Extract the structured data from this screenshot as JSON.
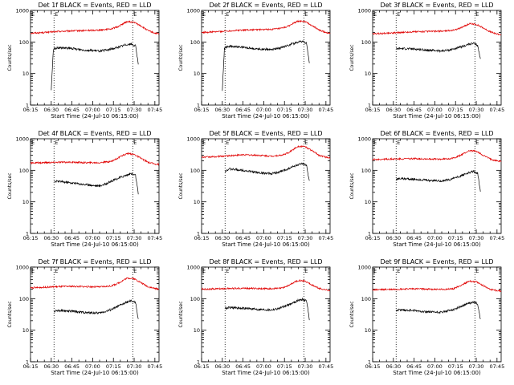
{
  "colors": {
    "events": "#000000",
    "lld": "#e00000"
  },
  "chart_data": [
    {
      "type": "line",
      "title": "Det 1f BLACK = Events, RED = LLD",
      "xlabel": "Start Time (24-Jul-10 06:15:00)",
      "ylabel": "Counts/sec",
      "x_ticks": [
        "06:15",
        "06:30",
        "06:45",
        "07:00",
        "07:15",
        "07:30",
        "07:45"
      ],
      "y_ticks": [
        "1",
        "10",
        "100",
        "1000"
      ],
      "yscale": "log",
      "ylim": [
        1,
        1000
      ],
      "xlim_minutes": [
        0,
        93
      ],
      "markers": [
        "E",
        "E"
      ],
      "marker_minutes": [
        17,
        74
      ],
      "series": [
        {
          "name": "LLD",
          "x_minutes": [
            0,
            10,
            20,
            30,
            40,
            50,
            58,
            63,
            67,
            70,
            75,
            80,
            85,
            90,
            93
          ],
          "y": [
            190,
            200,
            215,
            225,
            230,
            240,
            260,
            300,
            380,
            440,
            420,
            320,
            230,
            190,
            180
          ]
        },
        {
          "name": "Events",
          "x_minutes": [
            15,
            16.5,
            17,
            20,
            30,
            40,
            50,
            55,
            60,
            65,
            70,
            73,
            76,
            78
          ],
          "y": [
            3,
            55,
            62,
            65,
            62,
            55,
            52,
            55,
            62,
            72,
            85,
            85,
            75,
            20
          ]
        }
      ]
    },
    {
      "type": "line",
      "title": "Det 2f BLACK = Events, RED = LLD",
      "xlabel": "Start Time (24-Jul-10 06:15:00)",
      "ylabel": "Counts/sec",
      "x_ticks": [
        "06:15",
        "06:30",
        "06:45",
        "07:00",
        "07:15",
        "07:30",
        "07:45"
      ],
      "y_ticks": [
        "1",
        "10",
        "100",
        "1000"
      ],
      "yscale": "log",
      "ylim": [
        1,
        1000
      ],
      "xlim_minutes": [
        0,
        93
      ],
      "markers": [
        "E",
        "E"
      ],
      "marker_minutes": [
        17,
        74
      ],
      "series": [
        {
          "name": "LLD",
          "x_minutes": [
            0,
            10,
            20,
            30,
            40,
            50,
            58,
            63,
            67,
            70,
            75,
            80,
            85,
            90,
            93
          ],
          "y": [
            200,
            210,
            225,
            240,
            245,
            250,
            270,
            320,
            400,
            460,
            440,
            330,
            240,
            200,
            190
          ]
        },
        {
          "name": "Events",
          "x_minutes": [
            15,
            16.5,
            17,
            20,
            30,
            40,
            50,
            55,
            60,
            65,
            70,
            73,
            76,
            78
          ],
          "y": [
            3,
            60,
            68,
            72,
            68,
            60,
            58,
            62,
            72,
            85,
            100,
            105,
            90,
            20
          ]
        }
      ]
    },
    {
      "type": "line",
      "title": "Det 3f BLACK = Events, RED = LLD",
      "xlabel": "Start Time (24-Jul-10 06:15:00)",
      "ylabel": "Counts/sec",
      "x_ticks": [
        "06:15",
        "06:30",
        "06:45",
        "07:00",
        "07:15",
        "07:30",
        "07:45"
      ],
      "y_ticks": [
        "1",
        "10",
        "100",
        "1000"
      ],
      "yscale": "log",
      "ylim": [
        1,
        1000
      ],
      "xlim_minutes": [
        0,
        93
      ],
      "markers": [
        "E",
        "E"
      ],
      "marker_minutes": [
        17,
        74
      ],
      "series": [
        {
          "name": "LLD",
          "x_minutes": [
            0,
            10,
            20,
            30,
            40,
            50,
            58,
            63,
            67,
            70,
            75,
            80,
            85,
            90,
            93
          ],
          "y": [
            180,
            190,
            200,
            210,
            215,
            220,
            235,
            270,
            330,
            380,
            360,
            280,
            210,
            180,
            170
          ]
        },
        {
          "name": "Events",
          "x_minutes": [
            17,
            20,
            30,
            40,
            50,
            55,
            60,
            65,
            70,
            73,
            76,
            78
          ],
          "y": [
            60,
            62,
            60,
            55,
            52,
            55,
            62,
            72,
            85,
            90,
            78,
            28
          ]
        }
      ]
    },
    {
      "type": "line",
      "title": "Det 4f BLACK = Events, RED = LLD",
      "xlabel": "Start Time (24-Jul-10 06:15:00)",
      "ylabel": "Counts/sec",
      "x_ticks": [
        "06:15",
        "06:30",
        "06:45",
        "07:00",
        "07:15",
        "07:30",
        "07:45"
      ],
      "y_ticks": [
        "1",
        "10",
        "100",
        "1000"
      ],
      "yscale": "log",
      "ylim": [
        1,
        1000
      ],
      "xlim_minutes": [
        0,
        93
      ],
      "markers": [
        "E",
        "E"
      ],
      "marker_minutes": [
        17,
        74
      ],
      "series": [
        {
          "name": "LLD",
          "x_minutes": [
            0,
            10,
            20,
            30,
            40,
            50,
            58,
            63,
            67,
            70,
            75,
            80,
            85,
            90,
            93
          ],
          "y": [
            170,
            175,
            180,
            180,
            175,
            175,
            190,
            240,
            300,
            340,
            320,
            240,
            180,
            160,
            155
          ]
        },
        {
          "name": "Events",
          "x_minutes": [
            17,
            20,
            30,
            40,
            50,
            55,
            60,
            65,
            70,
            73,
            76,
            78
          ],
          "y": [
            45,
            45,
            40,
            35,
            32,
            38,
            48,
            60,
            72,
            78,
            70,
            18
          ]
        }
      ]
    },
    {
      "type": "line",
      "title": "Det 5f BLACK = Events, RED = LLD",
      "xlabel": "Start Time (24-Jul-10 06:15:00)",
      "ylabel": "Counts/sec",
      "x_ticks": [
        "06:15",
        "06:30",
        "06:45",
        "07:00",
        "07:15",
        "07:30",
        "07:45"
      ],
      "y_ticks": [
        "1",
        "10",
        "100",
        "1000"
      ],
      "yscale": "log",
      "ylim": [
        1,
        1000
      ],
      "xlim_minutes": [
        0,
        93
      ],
      "markers": [
        "E",
        "E"
      ],
      "marker_minutes": [
        17,
        74
      ],
      "series": [
        {
          "name": "LLD",
          "x_minutes": [
            0,
            10,
            20,
            30,
            40,
            50,
            58,
            63,
            67,
            70,
            75,
            80,
            85,
            90,
            93
          ],
          "y": [
            260,
            270,
            290,
            310,
            300,
            280,
            300,
            360,
            480,
            580,
            560,
            420,
            300,
            260,
            250
          ]
        },
        {
          "name": "Events",
          "x_minutes": [
            17,
            20,
            30,
            40,
            50,
            55,
            60,
            65,
            70,
            73,
            76,
            78
          ],
          "y": [
            95,
            110,
            100,
            85,
            78,
            85,
            100,
            125,
            150,
            160,
            140,
            45
          ]
        }
      ]
    },
    {
      "type": "line",
      "title": "Det 6f BLACK = Events, RED = LLD",
      "xlabel": "Start Time (24-Jul-10 06:15:00)",
      "ylabel": "Counts/sec",
      "x_ticks": [
        "06:15",
        "06:30",
        "06:45",
        "07:00",
        "07:15",
        "07:30",
        "07:45"
      ],
      "y_ticks": [
        "1",
        "10",
        "100",
        "1000"
      ],
      "yscale": "log",
      "ylim": [
        1,
        1000
      ],
      "xlim_minutes": [
        0,
        93
      ],
      "markers": [
        "E",
        "E"
      ],
      "marker_minutes": [
        17,
        74
      ],
      "series": [
        {
          "name": "LLD",
          "x_minutes": [
            0,
            10,
            20,
            30,
            40,
            50,
            58,
            63,
            67,
            70,
            75,
            80,
            85,
            90,
            93
          ],
          "y": [
            220,
            225,
            230,
            235,
            230,
            225,
            240,
            290,
            360,
            420,
            400,
            300,
            230,
            200,
            190
          ]
        },
        {
          "name": "Events",
          "x_minutes": [
            17,
            20,
            30,
            40,
            50,
            55,
            60,
            65,
            70,
            73,
            76,
            78
          ],
          "y": [
            52,
            55,
            52,
            48,
            46,
            50,
            58,
            70,
            85,
            92,
            80,
            22
          ]
        }
      ]
    },
    {
      "type": "line",
      "title": "Det 7f BLACK = Events, RED = LLD",
      "xlabel": "Start Time (24-Jul-10 06:15:00)",
      "ylabel": "Counts/sec",
      "x_ticks": [
        "06:15",
        "06:30",
        "06:45",
        "07:00",
        "07:15",
        "07:30",
        "07:45"
      ],
      "y_ticks": [
        "1",
        "10",
        "100",
        "1000"
      ],
      "yscale": "log",
      "ylim": [
        1,
        1000
      ],
      "xlim_minutes": [
        0,
        93
      ],
      "markers": [
        "E",
        "E"
      ],
      "marker_minutes": [
        17,
        74
      ],
      "series": [
        {
          "name": "LLD",
          "x_minutes": [
            0,
            10,
            20,
            30,
            40,
            50,
            58,
            63,
            67,
            70,
            75,
            80,
            85,
            90,
            93
          ],
          "y": [
            220,
            230,
            240,
            245,
            240,
            235,
            250,
            300,
            380,
            450,
            430,
            320,
            240,
            210,
            200
          ]
        },
        {
          "name": "Events",
          "x_minutes": [
            17,
            20,
            30,
            40,
            50,
            55,
            60,
            65,
            70,
            73,
            76,
            78
          ],
          "y": [
            40,
            42,
            40,
            36,
            35,
            40,
            48,
            62,
            78,
            85,
            75,
            22
          ]
        }
      ]
    },
    {
      "type": "line",
      "title": "Det 8f BLACK = Events, RED = LLD",
      "xlabel": "Start Time (24-Jul-10 06:15:00)",
      "ylabel": "Counts/sec",
      "x_ticks": [
        "06:15",
        "06:30",
        "06:45",
        "07:00",
        "07:15",
        "07:30",
        "07:45"
      ],
      "y_ticks": [
        "1",
        "10",
        "100",
        "1000"
      ],
      "yscale": "log",
      "ylim": [
        1,
        1000
      ],
      "xlim_minutes": [
        0,
        93
      ],
      "markers": [
        "E",
        "E"
      ],
      "marker_minutes": [
        17,
        74
      ],
      "series": [
        {
          "name": "LLD",
          "x_minutes": [
            0,
            10,
            20,
            30,
            40,
            50,
            58,
            63,
            67,
            70,
            75,
            80,
            85,
            90,
            93
          ],
          "y": [
            200,
            205,
            210,
            215,
            210,
            205,
            215,
            260,
            330,
            380,
            360,
            270,
            210,
            190,
            180
          ]
        },
        {
          "name": "Events",
          "x_minutes": [
            17,
            20,
            30,
            40,
            50,
            55,
            60,
            65,
            70,
            73,
            76,
            78
          ],
          "y": [
            50,
            52,
            50,
            46,
            44,
            48,
            56,
            70,
            88,
            95,
            85,
            22
          ]
        }
      ]
    },
    {
      "type": "line",
      "title": "Det 9f BLACK = Events, RED = LLD",
      "xlabel": "Start Time (24-Jul-10 06:15:00)",
      "ylabel": "Counts/sec",
      "x_ticks": [
        "06:15",
        "06:30",
        "06:45",
        "07:00",
        "07:15",
        "07:30",
        "07:45"
      ],
      "y_ticks": [
        "1",
        "10",
        "100",
        "1000"
      ],
      "yscale": "log",
      "ylim": [
        1,
        1000
      ],
      "xlim_minutes": [
        0,
        93
      ],
      "markers": [
        "E",
        "E"
      ],
      "marker_minutes": [
        17,
        74
      ],
      "series": [
        {
          "name": "LLD",
          "x_minutes": [
            0,
            10,
            20,
            30,
            40,
            50,
            58,
            63,
            67,
            70,
            75,
            80,
            85,
            90,
            93
          ],
          "y": [
            190,
            195,
            200,
            205,
            200,
            195,
            205,
            250,
            310,
            360,
            340,
            260,
            200,
            180,
            175
          ]
        },
        {
          "name": "Events",
          "x_minutes": [
            17,
            20,
            30,
            40,
            50,
            55,
            60,
            65,
            70,
            73,
            76,
            78
          ],
          "y": [
            42,
            44,
            42,
            38,
            37,
            41,
            48,
            60,
            72,
            78,
            68,
            22
          ]
        }
      ]
    }
  ]
}
